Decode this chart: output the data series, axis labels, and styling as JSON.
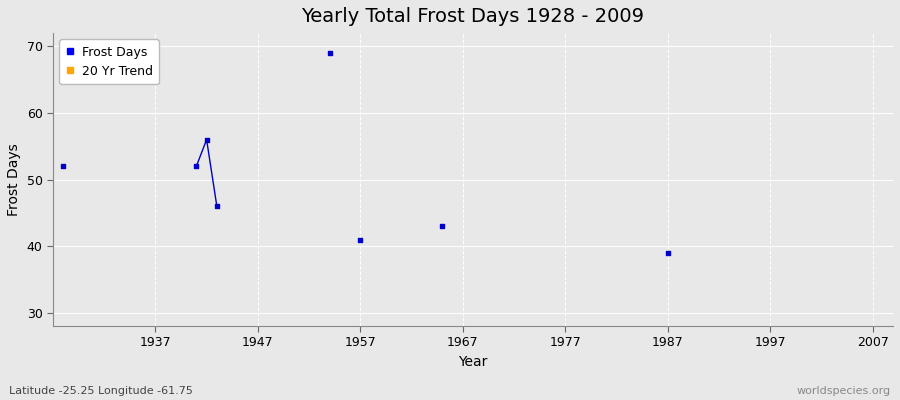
{
  "title": "Yearly Total Frost Days 1928 - 2009",
  "xlabel": "Year",
  "ylabel": "Frost Days",
  "xlim": [
    1927,
    2009
  ],
  "ylim": [
    28,
    72
  ],
  "xticks": [
    1937,
    1947,
    1957,
    1967,
    1977,
    1987,
    1997,
    2007
  ],
  "yticks": [
    30,
    40,
    50,
    60,
    70
  ],
  "scatter_years": [
    1928,
    1954,
    1957,
    1965,
    1987
  ],
  "scatter_values": [
    52,
    69,
    41,
    43,
    39
  ],
  "line_years": [
    1941,
    1942,
    1943
  ],
  "line_values": [
    52,
    56,
    46
  ],
  "point_color": "#0000cc",
  "line_color": "#0000cc",
  "bg_color": "#e8e8e8",
  "plot_bg_color": "#e8e8e8",
  "grid_color": "#ffffff",
  "legend_frost_label": "Frost Days",
  "legend_trend_label": "20 Yr Trend",
  "legend_frost_color": "#0000ff",
  "legend_trend_color": "#ffa500",
  "subtitle": "Latitude -25.25 Longitude -61.75",
  "watermark": "worldspecies.org",
  "title_fontsize": 14,
  "axis_fontsize": 10,
  "tick_fontsize": 9
}
